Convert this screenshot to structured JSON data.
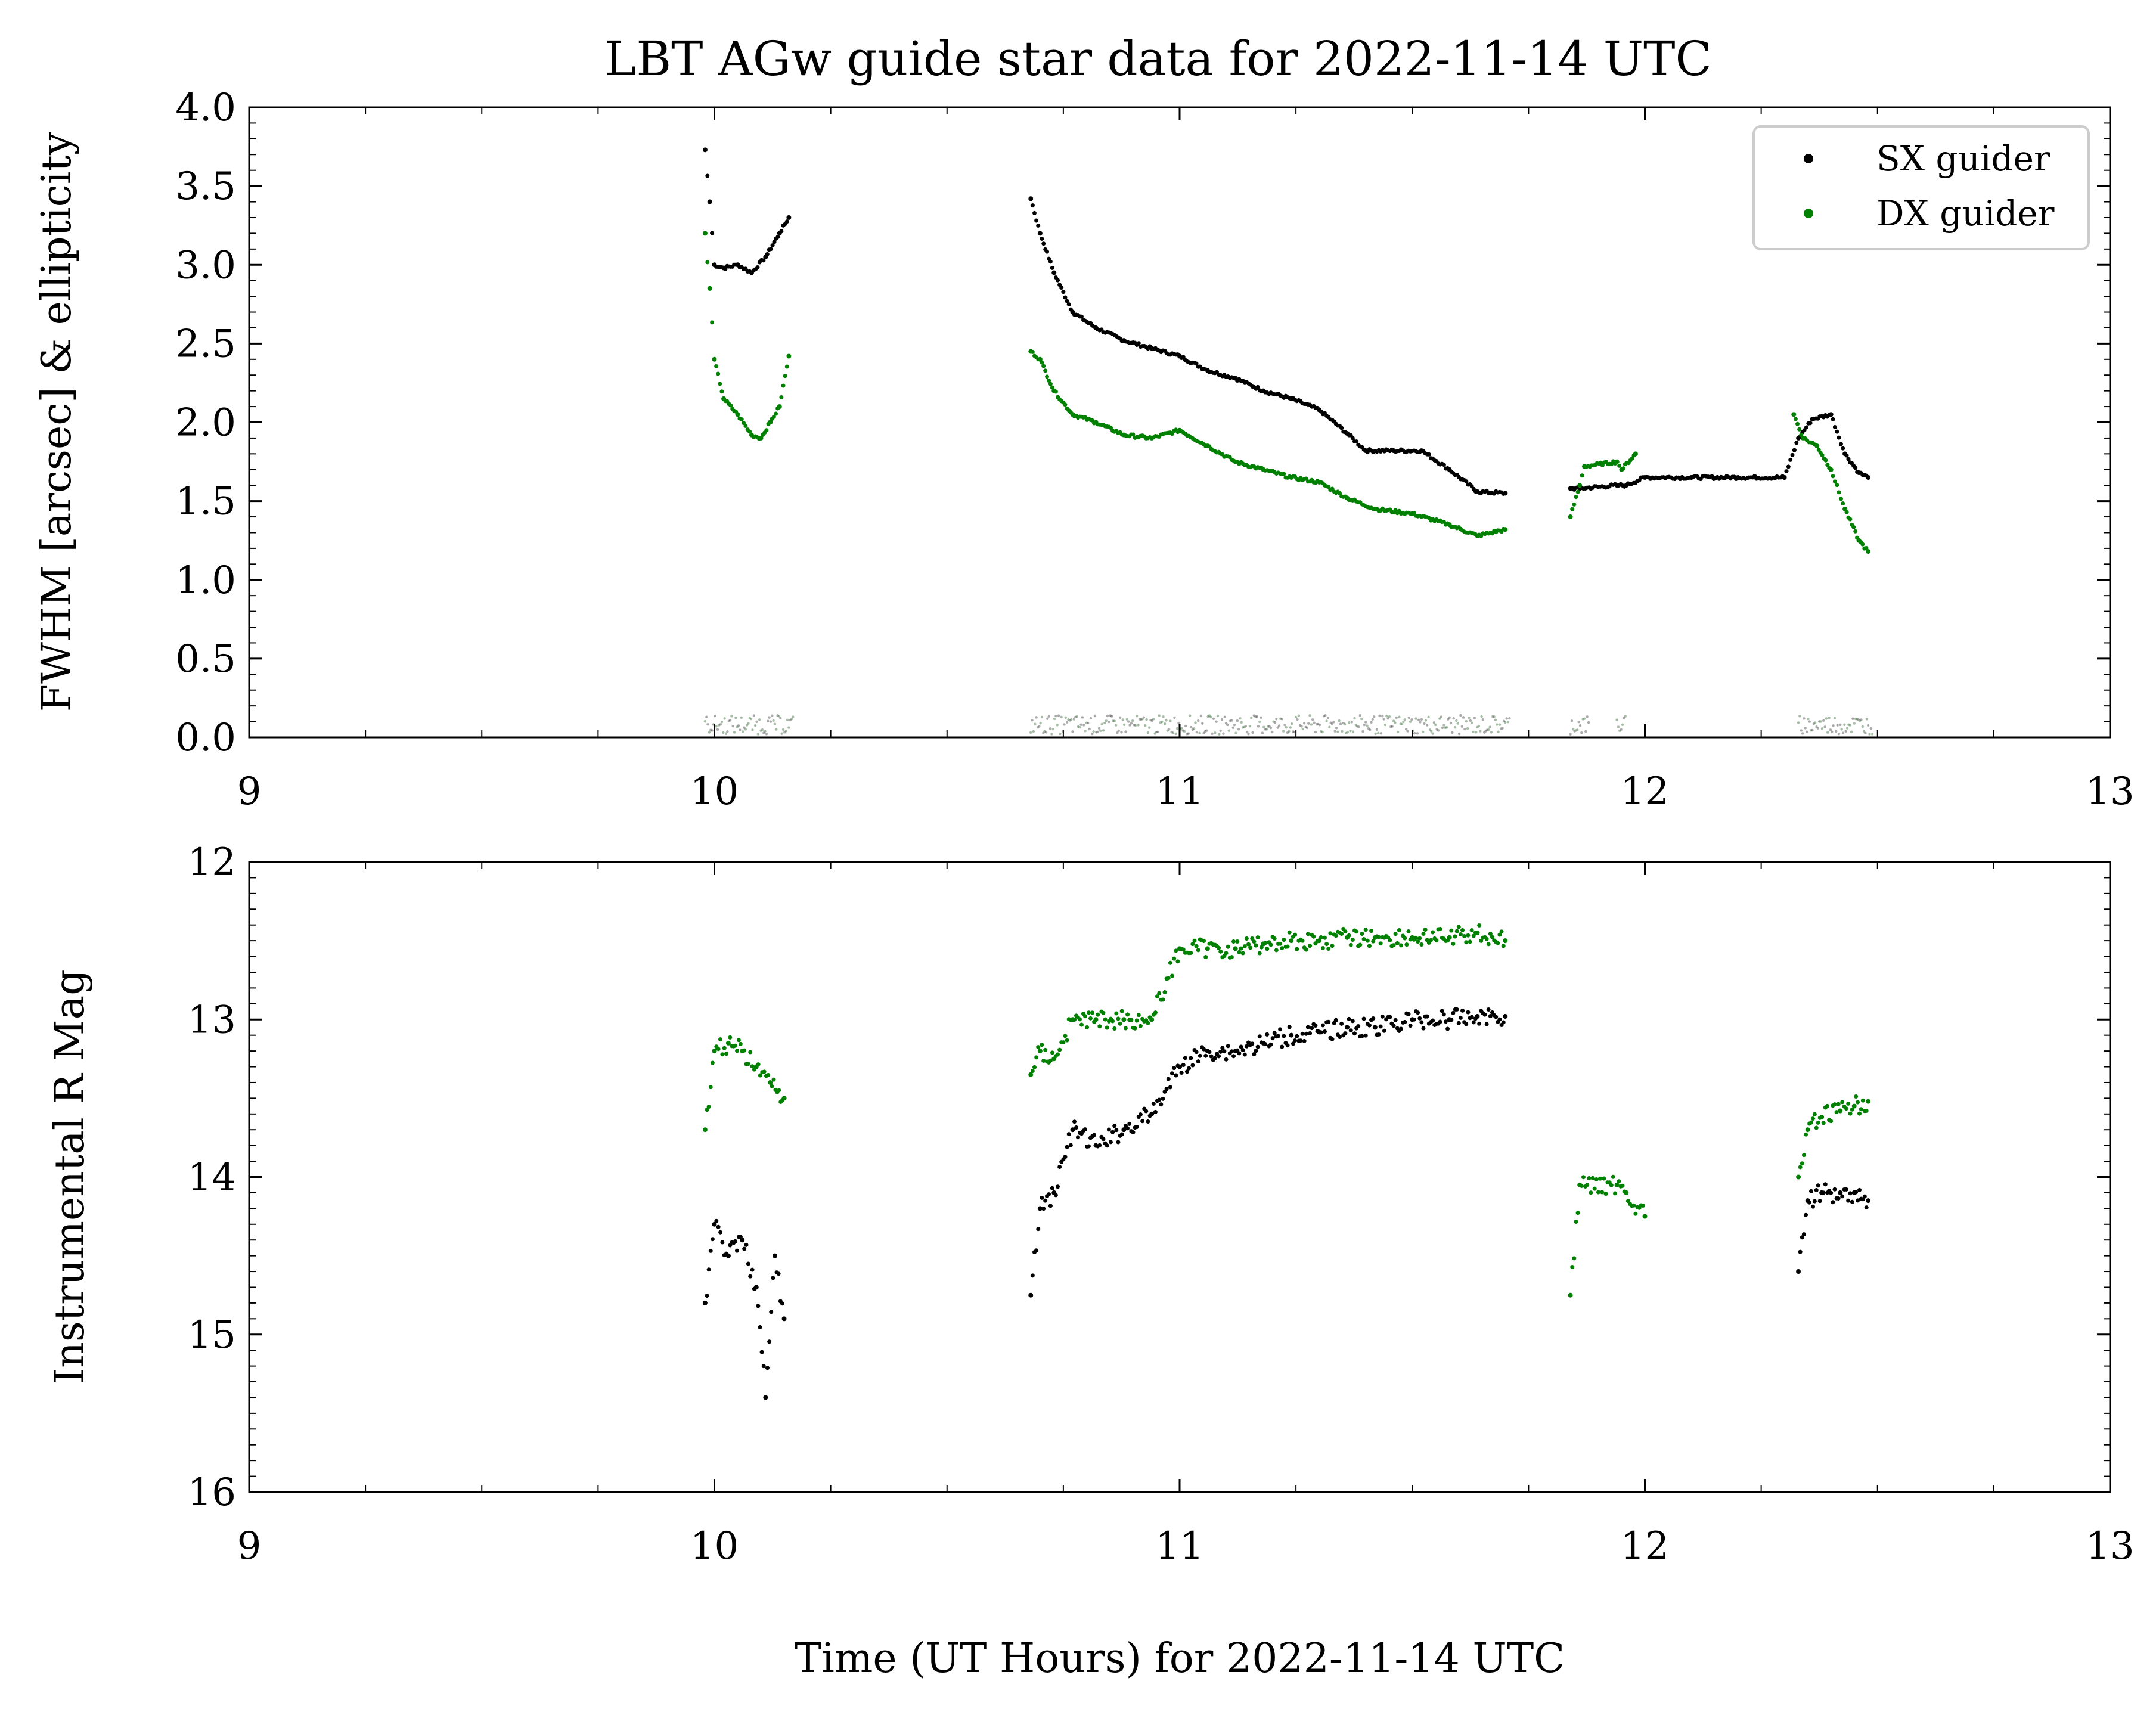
{
  "chart_data": [
    {
      "type": "scatter",
      "title": "LBT AGw guide star data for 2022-11-14 UTC",
      "xlabel": "",
      "ylabel": "FWHM [arcsec] & ellipticity",
      "xlim": [
        9,
        13
      ],
      "ylim": [
        0,
        4
      ],
      "x_ticks": [
        "9",
        "10",
        "11",
        "12",
        "13"
      ],
      "y_ticks": [
        "0.0",
        "0.5",
        "1.0",
        "1.5",
        "2.0",
        "2.5",
        "3.0",
        "3.5",
        "4.0"
      ],
      "grid": false,
      "legend_position": "top-right",
      "series": [
        {
          "name": "SX guider",
          "color": "#000000",
          "x": [
            9.98,
            9.99,
            10.0,
            10.02,
            10.05,
            10.08,
            10.11,
            10.14,
            10.16,
            10.68,
            10.7,
            10.73,
            10.77,
            10.82,
            10.88,
            10.94,
            11.0,
            11.06,
            11.12,
            11.18,
            11.24,
            11.3,
            11.36,
            11.4,
            11.46,
            11.52,
            11.58,
            11.64,
            11.7,
            11.84,
            11.86,
            11.94,
            11.96,
            12.0,
            12.1,
            12.2,
            12.3,
            12.33,
            12.36,
            12.4,
            12.43,
            12.46,
            12.48
          ],
          "y": [
            3.73,
            3.4,
            3.0,
            2.98,
            3.0,
            2.95,
            3.05,
            3.2,
            3.3,
            3.42,
            3.2,
            2.95,
            2.7,
            2.6,
            2.52,
            2.47,
            2.42,
            2.33,
            2.28,
            2.2,
            2.15,
            2.08,
            1.93,
            1.82,
            1.82,
            1.82,
            1.7,
            1.56,
            1.55,
            1.58,
            1.58,
            1.6,
            1.6,
            1.65,
            1.65,
            1.65,
            1.65,
            1.9,
            2.02,
            2.05,
            1.8,
            1.68,
            1.65
          ]
        },
        {
          "name": "DX guider",
          "color": "#008000",
          "x": [
            9.98,
            9.99,
            10.0,
            10.02,
            10.05,
            10.08,
            10.1,
            10.12,
            10.14,
            10.16,
            10.68,
            10.7,
            10.73,
            10.77,
            10.82,
            10.88,
            10.94,
            11.0,
            11.06,
            11.12,
            11.18,
            11.24,
            11.3,
            11.36,
            11.42,
            11.5,
            11.58,
            11.64,
            11.7,
            11.84,
            11.86,
            11.87,
            11.94,
            11.95,
            11.98,
            12.32,
            12.34,
            12.37,
            12.4,
            12.43,
            12.46,
            12.48
          ],
          "y": [
            3.2,
            2.85,
            2.4,
            2.15,
            2.05,
            1.92,
            1.9,
            2.0,
            2.1,
            2.42,
            2.45,
            2.4,
            2.2,
            2.05,
            2.0,
            1.92,
            1.9,
            1.95,
            1.85,
            1.75,
            1.7,
            1.65,
            1.62,
            1.52,
            1.45,
            1.42,
            1.35,
            1.28,
            1.32,
            1.4,
            1.6,
            1.72,
            1.75,
            1.7,
            1.8,
            2.05,
            1.9,
            1.85,
            1.7,
            1.45,
            1.25,
            1.18
          ]
        }
      ]
    },
    {
      "type": "scatter",
      "title": "",
      "xlabel": "Time (UT Hours) for 2022-11-14 UTC",
      "ylabel": "Instrumental R Mag",
      "xlim": [
        9,
        13
      ],
      "ylim": [
        16,
        12
      ],
      "y_inverted": true,
      "x_ticks": [
        "9",
        "10",
        "11",
        "12",
        "13"
      ],
      "y_ticks": [
        "12",
        "13",
        "14",
        "15",
        "16"
      ],
      "grid": false,
      "series": [
        {
          "name": "SX guider",
          "color": "#000000",
          "x": [
            9.98,
            10.0,
            10.03,
            10.06,
            10.09,
            10.11,
            10.13,
            10.15,
            10.68,
            10.7,
            10.73,
            10.77,
            10.82,
            10.88,
            10.94,
            11.0,
            11.06,
            11.12,
            11.18,
            11.24,
            11.3,
            11.36,
            11.42,
            11.5,
            11.58,
            11.64,
            11.7,
            12.33,
            12.35,
            12.38,
            12.42,
            12.45,
            12.48
          ],
          "y": [
            14.8,
            14.3,
            14.5,
            14.4,
            14.7,
            15.4,
            14.5,
            14.9,
            14.75,
            14.2,
            14.1,
            13.7,
            13.8,
            13.7,
            13.6,
            13.3,
            13.2,
            13.2,
            13.15,
            13.1,
            13.08,
            13.05,
            13.05,
            13.0,
            13.0,
            12.98,
            12.98,
            14.6,
            14.15,
            14.1,
            14.1,
            14.1,
            14.15
          ]
        },
        {
          "name": "DX guider",
          "color": "#008000",
          "x": [
            9.98,
            10.0,
            10.03,
            10.06,
            10.09,
            10.12,
            10.15,
            10.68,
            10.7,
            10.73,
            10.77,
            10.82,
            10.88,
            10.94,
            11.0,
            11.06,
            11.12,
            11.18,
            11.24,
            11.3,
            11.36,
            11.42,
            11.5,
            11.58,
            11.64,
            11.7,
            11.84,
            11.86,
            11.94,
            11.96,
            12.0,
            12.33,
            12.35,
            12.38,
            12.42,
            12.45,
            12.48
          ],
          "y": [
            13.7,
            13.2,
            13.15,
            13.2,
            13.3,
            13.4,
            13.5,
            13.35,
            13.2,
            13.25,
            13.0,
            13.0,
            13.0,
            13.0,
            12.55,
            12.55,
            12.55,
            12.52,
            12.5,
            12.5,
            12.48,
            12.48,
            12.48,
            12.48,
            12.45,
            12.5,
            14.75,
            14.05,
            14.05,
            14.1,
            14.25,
            14.0,
            13.7,
            13.62,
            13.58,
            13.55,
            13.52
          ]
        }
      ]
    }
  ]
}
